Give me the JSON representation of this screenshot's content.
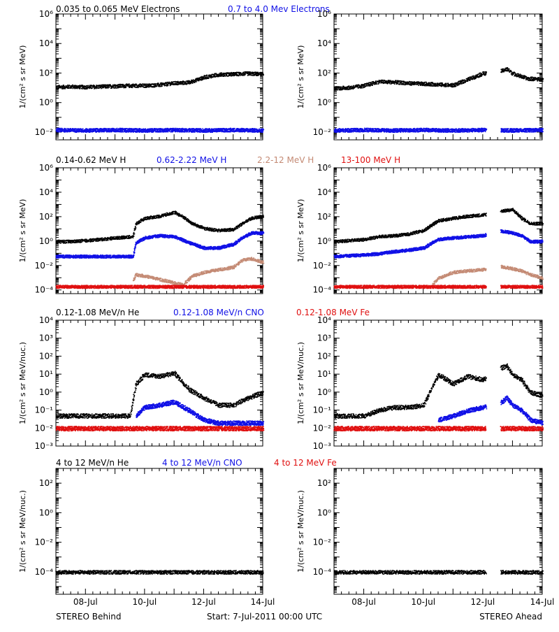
{
  "footer": {
    "left": "STEREO Behind",
    "center": "Start:  7-Jul-2011 00:00 UTC",
    "right": "STEREO Ahead"
  },
  "colors": {
    "black": "#000000",
    "blue": "#1010e6",
    "tan": "#c48a74",
    "red": "#e01010"
  },
  "chart_data": [
    {
      "type": "scatter",
      "row": 1,
      "legend": [
        {
          "label": "0.035 to 0.065 MeV Electrons",
          "color": "#000000"
        },
        {
          "label": "0.7 to 4.0 Mev Electrons",
          "color": "#1010e6"
        }
      ],
      "ylabel": "1/(cm² s sr MeV)",
      "yscale": "log",
      "ylim": [
        0.003,
        1000000
      ],
      "yticks": [
        0.01,
        1,
        100,
        10000,
        1000000
      ],
      "ytick_labels": [
        "10⁻²",
        "10⁰",
        "10²",
        "10⁴",
        "10⁶"
      ],
      "x_unit": "days after 7-Jul-2011 00:00 UTC",
      "xlim": [
        0,
        7
      ],
      "xticks": [
        1,
        3,
        5,
        7
      ],
      "xtick_labels": [
        "08-Jul",
        "10-Jul",
        "12-Jul",
        "14-Jul"
      ],
      "panels": [
        {
          "spacecraft": "STEREO Behind",
          "series": [
            {
              "label": "0.035 to 0.065 MeV Electrons",
              "x": [
                0,
                0.5,
                1.0,
                1.5,
                2.0,
                2.5,
                3.0,
                3.5,
                4.0,
                4.5,
                5.0,
                5.5,
                6.0,
                6.5,
                7.0
              ],
              "y": [
                12,
                13,
                12,
                13,
                14,
                15,
                15,
                17,
                22,
                25,
                55,
                85,
                90,
                100,
                90
              ]
            },
            {
              "label": "0.7 to 4.0 Mev Electrons",
              "x": [
                0,
                1,
                2,
                3,
                4,
                5,
                6,
                7
              ],
              "y": [
                0.015,
                0.014,
                0.015,
                0.014,
                0.015,
                0.014,
                0.015,
                0.014
              ]
            }
          ]
        },
        {
          "spacecraft": "STEREO Ahead",
          "series": [
            {
              "label": "0.035 to 0.065 MeV Electrons",
              "x": [
                0,
                0.5,
                1.0,
                1.5,
                2.0,
                2.5,
                3.0,
                3.5,
                4.0,
                4.5,
                5.0,
                5.5,
                5.8,
                6.0,
                6.5,
                7.0
              ],
              "y": [
                10,
                11,
                15,
                28,
                26,
                22,
                20,
                18,
                16,
                40,
                100,
                120,
                200,
                100,
                45,
                40
              ]
            },
            {
              "label": "0.7 to 4.0 Mev Electrons",
              "x": [
                0,
                1,
                2,
                3,
                4,
                5,
                6,
                7
              ],
              "y": [
                0.014,
                0.015,
                0.014,
                0.015,
                0.014,
                0.015,
                0.014,
                0.015
              ]
            }
          ],
          "gap": [
            5.1,
            5.6
          ]
        }
      ]
    },
    {
      "type": "scatter",
      "row": 2,
      "legend": [
        {
          "label": "0.14-0.62 MeV H",
          "color": "#000000"
        },
        {
          "label": "0.62-2.22 MeV H",
          "color": "#1010e6"
        },
        {
          "label": "2.2-12 MeV H",
          "color": "#c48a74"
        },
        {
          "label": "13-100 MeV H",
          "color": "#e01010"
        }
      ],
      "ylabel": "1/(cm² s sr MeV)",
      "yscale": "log",
      "ylim": [
        5e-05,
        1000000
      ],
      "yticks": [
        0.0001,
        0.01,
        1,
        100,
        10000,
        1000000
      ],
      "ytick_labels": [
        "10⁻⁴",
        "10⁻²",
        "10⁰",
        "10²",
        "10⁴",
        "10⁶"
      ],
      "x_unit": "days after 7-Jul-2011 00:00 UTC",
      "xlim": [
        0,
        7
      ],
      "xticks": [
        1,
        3,
        5,
        7
      ],
      "xtick_labels": [
        "08-Jul",
        "10-Jul",
        "12-Jul",
        "14-Jul"
      ],
      "panels": [
        {
          "spacecraft": "STEREO Behind",
          "series": [
            {
              "label": "0.14-0.62 MeV H",
              "x": [
                0,
                0.5,
                1.0,
                1.5,
                2.0,
                2.6,
                2.7,
                3.0,
                3.5,
                4.0,
                4.3,
                4.6,
                5.0,
                5.5,
                6.0,
                6.3,
                6.6,
                7.0
              ],
              "y": [
                1,
                1,
                1.2,
                1.5,
                2,
                2.5,
                30,
                80,
                120,
                250,
                100,
                30,
                12,
                8,
                10,
                30,
                80,
                120
              ]
            },
            {
              "label": "0.62-2.22 MeV H",
              "x": [
                0,
                0.5,
                1.0,
                1.5,
                2.0,
                2.6,
                2.7,
                3.0,
                3.5,
                4.0,
                4.5,
                5.0,
                5.5,
                6.0,
                6.3,
                6.6,
                7.0
              ],
              "y": [
                0.06,
                0.06,
                0.06,
                0.06,
                0.06,
                0.06,
                0.8,
                2,
                3,
                2.5,
                0.8,
                0.3,
                0.3,
                0.6,
                2,
                5,
                5
              ]
            },
            {
              "label": "2.2-12 MeV H",
              "x": [
                2.6,
                2.7,
                3.0,
                3.5,
                4.0,
                4.3,
                4.6,
                5.0,
                5.5,
                6.0,
                6.3,
                6.6,
                7.0
              ],
              "y": [
                0.0006,
                0.002,
                0.0015,
                0.0008,
                0.0004,
                0.0003,
                0.0015,
                0.003,
                0.005,
                0.008,
                0.03,
                0.04,
                0.02
              ]
            },
            {
              "label": "13-100 MeV H",
              "x": [
                0,
                1,
                2,
                3,
                4,
                5,
                6,
                7
              ],
              "y": [
                0.0002,
                0.0002,
                0.0002,
                0.0002,
                0.0002,
                0.0002,
                0.0002,
                0.0002
              ]
            }
          ]
        },
        {
          "spacecraft": "STEREO Ahead",
          "series": [
            {
              "label": "0.14-0.62 MeV H",
              "x": [
                0,
                0.5,
                1.0,
                1.5,
                2.0,
                2.5,
                3.0,
                3.5,
                4.0,
                4.5,
                5.0,
                5.5,
                6.0,
                6.3,
                6.6,
                7.0
              ],
              "y": [
                1,
                1.2,
                1.5,
                2.5,
                3,
                4,
                8,
                50,
                80,
                120,
                150,
                300,
                400,
                80,
                30,
                30
              ]
            },
            {
              "label": "0.62-2.22 MeV H",
              "x": [
                0,
                0.5,
                1.0,
                1.5,
                2.0,
                2.5,
                3.0,
                3.5,
                4.0,
                4.5,
                5.0,
                5.5,
                6.0,
                6.3,
                6.6,
                7.0
              ],
              "y": [
                0.06,
                0.07,
                0.08,
                0.1,
                0.15,
                0.2,
                0.3,
                1.5,
                2,
                2.5,
                3,
                8,
                5,
                3,
                1,
                1
              ]
            },
            {
              "label": "2.2-12 MeV H",
              "x": [
                3.3,
                3.5,
                4.0,
                4.5,
                5.0,
                5.5,
                6.0,
                6.3,
                6.6,
                7.0
              ],
              "y": [
                0.0003,
                0.001,
                0.003,
                0.004,
                0.005,
                0.01,
                0.006,
                0.004,
                0.002,
                0.001
              ]
            },
            {
              "label": "13-100 MeV H",
              "x": [
                0,
                1,
                2,
                3,
                4,
                5,
                6,
                7
              ],
              "y": [
                0.0002,
                0.0002,
                0.0002,
                0.0002,
                0.0002,
                0.0002,
                0.0002,
                0.0002
              ]
            }
          ],
          "gap": [
            5.1,
            5.6
          ]
        }
      ]
    },
    {
      "type": "scatter",
      "row": 3,
      "legend": [
        {
          "label": "0.12-1.08 MeV/n He",
          "color": "#000000"
        },
        {
          "label": "0.12-1.08 MeV/n CNO",
          "color": "#1010e6"
        },
        {
          "label": "0.12-1.08 MeV Fe",
          "color": "#e01010"
        }
      ],
      "ylabel": "1/(cm² s sr MeV/nuc.)",
      "yscale": "log",
      "ylim": [
        0.001,
        10000
      ],
      "yticks": [
        0.001,
        0.01,
        0.1,
        1,
        10,
        100,
        1000,
        10000
      ],
      "ytick_labels": [
        "10⁻³",
        "10⁻²",
        "10⁻¹",
        "10⁰",
        "10¹",
        "10²",
        "10³",
        "10⁴"
      ],
      "x_unit": "days after 7-Jul-2011 00:00 UTC",
      "xlim": [
        0,
        7
      ],
      "xticks": [
        1,
        3,
        5,
        7
      ],
      "xtick_labels": [
        "08-Jul",
        "10-Jul",
        "12-Jul",
        "14-Jul"
      ],
      "panels": [
        {
          "spacecraft": "STEREO Behind",
          "series": [
            {
              "label": "0.12-1.08 MeV/n He",
              "x": [
                0,
                0.5,
                1.0,
                1.5,
                2.0,
                2.5,
                2.7,
                3.0,
                3.5,
                4.0,
                4.5,
                5.0,
                5.5,
                6.0,
                6.5,
                7.0
              ],
              "y": [
                0.05,
                0.05,
                0.05,
                0.05,
                0.05,
                0.05,
                3,
                10,
                8,
                12,
                1.5,
                0.5,
                0.2,
                0.2,
                0.5,
                1
              ]
            },
            {
              "label": "0.12-1.08 MeV/n CNO",
              "x": [
                2.7,
                3.0,
                3.5,
                4.0,
                4.5,
                5.0,
                5.5,
                6.0,
                6.5,
                7.0
              ],
              "y": [
                0.05,
                0.15,
                0.2,
                0.3,
                0.1,
                0.03,
                0.02,
                0.02,
                0.02,
                0.02
              ]
            },
            {
              "label": "0.12-1.08 MeV Fe",
              "x": [
                0,
                1,
                2,
                3,
                4,
                5,
                6,
                7
              ],
              "y": [
                0.01,
                0.01,
                0.01,
                0.01,
                0.01,
                0.01,
                0.01,
                0.01
              ]
            }
          ]
        },
        {
          "spacecraft": "STEREO Ahead",
          "series": [
            {
              "label": "0.12-1.08 MeV/n He",
              "x": [
                0,
                0.5,
                1.0,
                1.5,
                2.0,
                2.5,
                3.0,
                3.5,
                4.0,
                4.5,
                5.0,
                5.5,
                5.8,
                6.0,
                6.3,
                6.6,
                7.0
              ],
              "y": [
                0.05,
                0.05,
                0.05,
                0.1,
                0.15,
                0.15,
                0.2,
                10,
                3,
                8,
                5,
                20,
                30,
                10,
                5,
                1,
                0.7
              ]
            },
            {
              "label": "0.12-1.08 MeV/n CNO",
              "x": [
                3.5,
                4.0,
                4.5,
                5.0,
                5.5,
                5.8,
                6.0,
                6.3,
                6.6,
                7.0
              ],
              "y": [
                0.03,
                0.05,
                0.1,
                0.15,
                0.2,
                0.5,
                0.2,
                0.1,
                0.03,
                0.02
              ]
            },
            {
              "label": "0.12-1.08 MeV Fe",
              "x": [
                0,
                1,
                2,
                3,
                4,
                5,
                6,
                7
              ],
              "y": [
                0.01,
                0.01,
                0.01,
                0.01,
                0.01,
                0.01,
                0.01,
                0.01
              ]
            }
          ],
          "gap": [
            5.1,
            5.6
          ]
        }
      ]
    },
    {
      "type": "scatter",
      "row": 4,
      "legend": [
        {
          "label": "4 to 12 MeV/n He",
          "color": "#000000"
        },
        {
          "label": "4 to 12 MeV/n CNO",
          "color": "#1010e6"
        },
        {
          "label": "4 to 12 MeV Fe",
          "color": "#e01010"
        }
      ],
      "ylabel": "1/(cm² s sr MeV/nuc.)",
      "yscale": "log",
      "ylim": [
        3e-06,
        1000
      ],
      "yticks": [
        0.0001,
        0.01,
        1,
        100
      ],
      "ytick_labels": [
        "10⁻⁴",
        "10⁻²",
        "10⁰",
        "10²"
      ],
      "x_unit": "days after 7-Jul-2011 00:00 UTC",
      "xlim": [
        0,
        7
      ],
      "xticks": [
        1,
        3,
        5,
        7
      ],
      "xtick_labels": [
        "08-Jul",
        "10-Jul",
        "12-Jul",
        "14-Jul"
      ],
      "panels": [
        {
          "spacecraft": "STEREO Behind",
          "series": [
            {
              "label": "4 to 12 MeV/n He",
              "x": [
                0,
                7
              ],
              "y": [
                0.0001,
                0.0001
              ]
            },
            {
              "label": "4 to 12 MeV/n CNO",
              "x": [],
              "y": []
            },
            {
              "label": "4 to 12 MeV Fe",
              "x": [],
              "y": []
            }
          ]
        },
        {
          "spacecraft": "STEREO Ahead",
          "series": [
            {
              "label": "4 to 12 MeV/n He",
              "x": [
                0,
                7
              ],
              "y": [
                0.0001,
                0.0001
              ]
            },
            {
              "label": "4 to 12 MeV/n CNO",
              "x": [],
              "y": []
            },
            {
              "label": "4 to 12 MeV Fe",
              "x": [],
              "y": []
            }
          ],
          "gap": [
            5.1,
            5.6
          ]
        }
      ]
    }
  ]
}
